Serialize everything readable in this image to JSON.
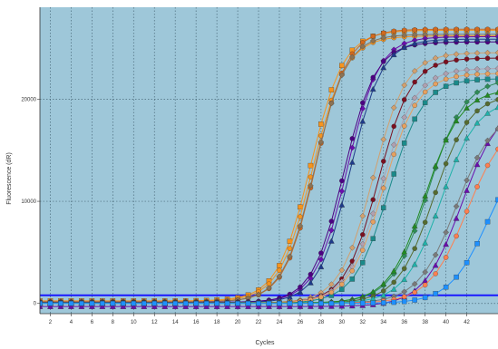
{
  "chart_data": {
    "type": "line",
    "xlabel": "Cycles",
    "ylabel": "Fluorescence (dR)",
    "xlim": [
      1,
      45
    ],
    "ylim": [
      -1000,
      29000
    ],
    "x_ticks": [
      "2",
      "4",
      "6",
      "8",
      "10",
      "12",
      "14",
      "16",
      "18",
      "20",
      "22",
      "24",
      "26",
      "28",
      "30",
      "32",
      "34",
      "36",
      "38",
      "40",
      "42"
    ],
    "y_ticks": [
      "0",
      "10000",
      "20000"
    ],
    "y_tick_values": [
      0,
      10000,
      20000
    ],
    "grid": true,
    "plot_background": "#9ec7d9",
    "grid_color": "#4a6a7a",
    "threshold": {
      "value": 800,
      "color": "#1a1aff"
    },
    "cycles_start": 1,
    "cycles_end": 45,
    "series": [
      {
        "color": "#f7941d",
        "marker": "square",
        "ct": 27.0,
        "plateau": 26500,
        "slope": 1.15,
        "offset": 250
      },
      {
        "color": "#f7941d",
        "marker": "circle",
        "ct": 27.2,
        "plateau": 26000,
        "slope": 1.15,
        "offset": 200
      },
      {
        "color": "#d2691e",
        "marker": "circle",
        "ct": 27.5,
        "plateau": 26700,
        "slope": 1.2,
        "offset": 150
      },
      {
        "color": "#8b7355",
        "marker": "diamond",
        "ct": 27.4,
        "plateau": 26200,
        "slope": 1.2,
        "offset": 150
      },
      {
        "color": "#6a0dad",
        "marker": "diamond",
        "ct": 30.5,
        "plateau": 26000,
        "slope": 1.2,
        "offset": 120
      },
      {
        "color": "#4b0082",
        "marker": "circle",
        "ct": 30.2,
        "plateau": 25500,
        "slope": 1.2,
        "offset": 100
      },
      {
        "color": "#1e3a8a",
        "marker": "triangle",
        "ct": 30.8,
        "plateau": 25800,
        "slope": 1.2,
        "offset": 80
      },
      {
        "color": "#d2a06e",
        "marker": "diamond",
        "ct": 33.0,
        "plateau": 24500,
        "slope": 1.15,
        "offset": 60
      },
      {
        "color": "#7a1020",
        "marker": "circle",
        "ct": 33.5,
        "plateau": 24000,
        "slope": 1.15,
        "offset": 40
      },
      {
        "color": "#b0a0b0",
        "marker": "diamond",
        "ct": 33.8,
        "plateau": 23000,
        "slope": 1.1,
        "offset": 30
      },
      {
        "color": "#1a8a8a",
        "marker": "square",
        "ct": 34.5,
        "plateau": 22000,
        "slope": 1.1,
        "offset": 20
      },
      {
        "color": "#e6a060",
        "marker": "circle",
        "ct": 34.0,
        "plateau": 22500,
        "slope": 1.1,
        "offset": 40
      },
      {
        "color": "#2e8b57",
        "marker": "diamond",
        "ct": 38.3,
        "plateau": 22000,
        "slope": 1.05,
        "offset": 50
      },
      {
        "color": "#228b22",
        "marker": "triangle",
        "ct": 38.0,
        "plateau": 21000,
        "slope": 1.05,
        "offset": 30
      },
      {
        "color": "#556b2f",
        "marker": "circle",
        "ct": 38.8,
        "plateau": 20500,
        "slope": 1.05,
        "offset": 20
      },
      {
        "color": "#6a0dad",
        "marker": "triangle",
        "ct": 41.5,
        "plateau": 20000,
        "slope": 1.0,
        "offset": -300
      },
      {
        "color": "#7a7a7a",
        "marker": "diamond",
        "ct": 41.0,
        "plateau": 19000,
        "slope": 1.0,
        "offset": 10
      },
      {
        "color": "#ff7f50",
        "marker": "circle",
        "ct": 42.0,
        "plateau": 18000,
        "slope": 1.0,
        "offset": 10
      },
      {
        "color": "#20b2aa",
        "marker": "triangle",
        "ct": 39.5,
        "plateau": 20000,
        "slope": 1.05,
        "offset": 10
      },
      {
        "color": "#1e90ff",
        "marker": "square",
        "ct": 44.0,
        "plateau": 16000,
        "slope": 1.0,
        "offset": 0
      }
    ]
  }
}
